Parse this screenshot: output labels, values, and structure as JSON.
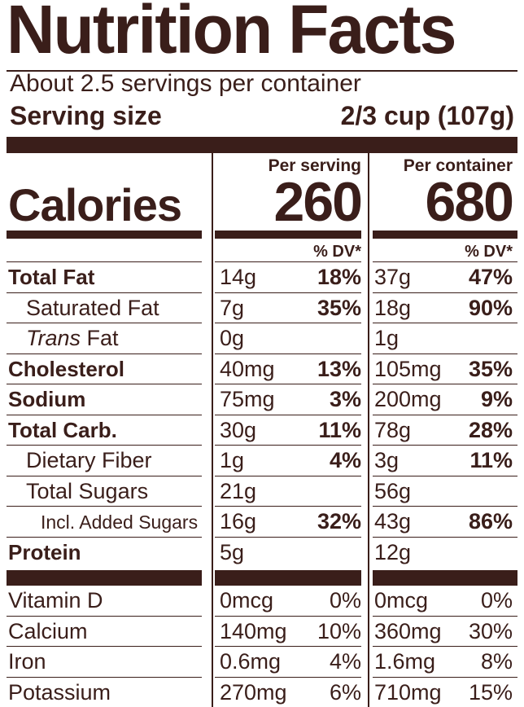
{
  "title": "Nutrition Facts",
  "servings_per_container": "About 2.5 servings per container",
  "serving_size_label": "Serving size",
  "serving_size_value": "2/3 cup (107g)",
  "column_headers": {
    "per_serving": "Per serving",
    "per_container": "Per container"
  },
  "calories": {
    "label": "Calories",
    "per_serving": "260",
    "per_container": "680"
  },
  "dv_header": "% DV*",
  "nutrients": [
    {
      "label": "Total Fat",
      "serving_amount": "14g",
      "serving_dv": "18%",
      "container_amount": "37g",
      "container_dv": "47%"
    },
    {
      "label": "Saturated Fat",
      "serving_amount": "7g",
      "serving_dv": "35%",
      "container_amount": "18g",
      "container_dv": "90%"
    },
    {
      "label_italic": "Trans",
      "label": " Fat",
      "serving_amount": "0g",
      "serving_dv": "",
      "container_amount": "1g",
      "container_dv": ""
    },
    {
      "label": "Cholesterol",
      "serving_amount": "40mg",
      "serving_dv": "13%",
      "container_amount": "105mg",
      "container_dv": "35%"
    },
    {
      "label": "Sodium",
      "serving_amount": "75mg",
      "serving_dv": "3%",
      "container_amount": "200mg",
      "container_dv": "9%"
    },
    {
      "label": "Total Carb.",
      "serving_amount": "30g",
      "serving_dv": "11%",
      "container_amount": "78g",
      "container_dv": "28%"
    },
    {
      "label": "Dietary Fiber",
      "serving_amount": "1g",
      "serving_dv": "4%",
      "container_amount": "3g",
      "container_dv": "11%"
    },
    {
      "label": "Total Sugars",
      "serving_amount": "21g",
      "serving_dv": "",
      "container_amount": "56g",
      "container_dv": ""
    },
    {
      "label": "Incl. Added Sugars",
      "serving_amount": "16g",
      "serving_dv": "32%",
      "container_amount": "43g",
      "container_dv": "86%"
    },
    {
      "label": "Protein",
      "serving_amount": "5g",
      "serving_dv": "",
      "container_amount": "12g",
      "container_dv": ""
    }
  ],
  "vitamins": [
    {
      "label": "Vitamin D",
      "serving_amount": "0mcg",
      "serving_dv": "0%",
      "container_amount": "0mcg",
      "container_dv": "0%"
    },
    {
      "label": "Calcium",
      "serving_amount": "140mg",
      "serving_dv": "10%",
      "container_amount": "360mg",
      "container_dv": "30%"
    },
    {
      "label": "Iron",
      "serving_amount": "0.6mg",
      "serving_dv": "4%",
      "container_amount": "1.6mg",
      "container_dv": "8%"
    },
    {
      "label": "Potassium",
      "serving_amount": "270mg",
      "serving_dv": "6%",
      "container_amount": "710mg",
      "container_dv": "15%"
    }
  ],
  "colors": {
    "ink": "#3a1e1a",
    "background": "#ffffff"
  }
}
